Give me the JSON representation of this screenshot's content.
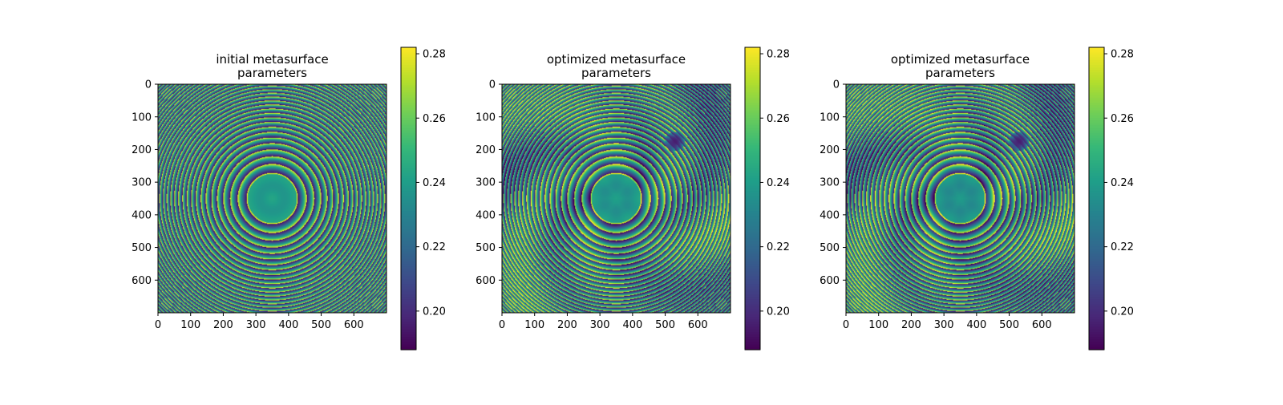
{
  "figure": {
    "background": "#ffffff",
    "colormap": "viridis",
    "colormap_stops": [
      "#440154",
      "#482878",
      "#3e4989",
      "#31688e",
      "#26828e",
      "#1f9e89",
      "#35b779",
      "#6ece58",
      "#b5de2b",
      "#fde725"
    ]
  },
  "chart_data": [
    {
      "type": "heatmap",
      "title": "initial metasurface\nparameters",
      "xlabel": "",
      "ylabel": "",
      "xlim": [
        0,
        700
      ],
      "ylim": [
        700,
        0
      ],
      "xticks": [
        0,
        100,
        200,
        300,
        400,
        500,
        600
      ],
      "yticks": [
        0,
        100,
        200,
        300,
        400,
        500,
        600
      ],
      "center": [
        350,
        350
      ],
      "inner_disk_radius": 75,
      "inner_disk_value": 0.24,
      "optimized_features": false,
      "colorbar": {
        "vmin": 0.188,
        "vmax": 0.282,
        "ticks": [
          0.2,
          0.22,
          0.24,
          0.26,
          0.28
        ],
        "tick_labels": [
          "0.20",
          "0.22",
          "0.24",
          "0.26",
          "0.28"
        ]
      }
    },
    {
      "type": "heatmap",
      "title": "optimized metasurface\nparameters",
      "xlabel": "",
      "ylabel": "",
      "xlim": [
        0,
        700
      ],
      "ylim": [
        700,
        0
      ],
      "xticks": [
        0,
        100,
        200,
        300,
        400,
        500,
        600
      ],
      "yticks": [
        0,
        100,
        200,
        300,
        400,
        500,
        600
      ],
      "center": [
        350,
        350
      ],
      "inner_disk_radius": 75,
      "inner_disk_value": 0.238,
      "optimized_features": true,
      "colorbar": {
        "vmin": 0.188,
        "vmax": 0.282,
        "ticks": [
          0.2,
          0.22,
          0.24,
          0.26,
          0.28
        ],
        "tick_labels": [
          "0.20",
          "0.22",
          "0.24",
          "0.26",
          "0.28"
        ]
      }
    },
    {
      "type": "heatmap",
      "title": "optimized metasurface\nparameters",
      "xlabel": "",
      "ylabel": "",
      "xlim": [
        0,
        700
      ],
      "ylim": [
        700,
        0
      ],
      "xticks": [
        0,
        100,
        200,
        300,
        400,
        500,
        600
      ],
      "yticks": [
        0,
        100,
        200,
        300,
        400,
        500,
        600
      ],
      "center": [
        350,
        350
      ],
      "inner_disk_radius": 75,
      "inner_disk_value": 0.236,
      "optimized_features": true,
      "colorbar": {
        "vmin": 0.188,
        "vmax": 0.282,
        "ticks": [
          0.2,
          0.22,
          0.24,
          0.26,
          0.28
        ],
        "tick_labels": [
          "0.20",
          "0.22",
          "0.24",
          "0.26",
          "0.28"
        ]
      }
    }
  ]
}
